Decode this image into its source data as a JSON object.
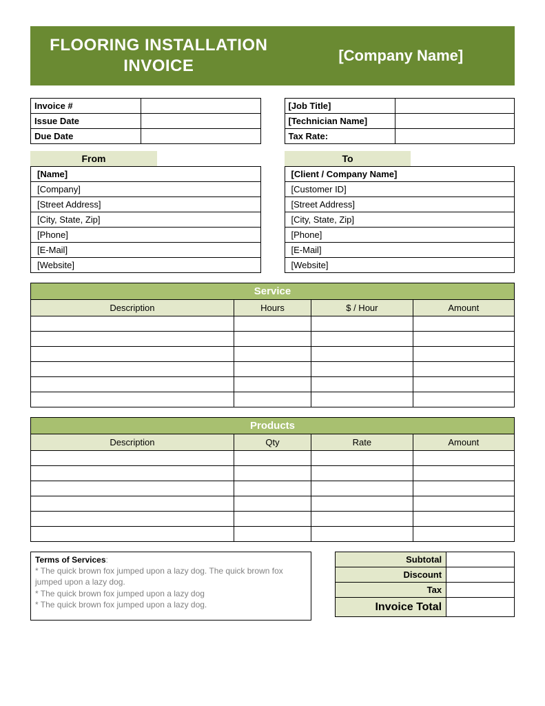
{
  "colors": {
    "header_band": "#6a8a32",
    "section_band": "#a8c070",
    "light_fill": "#e3e8cb",
    "border": "#000000",
    "terms_text": "#808080",
    "background": "#ffffff",
    "header_text": "#ffffff"
  },
  "header": {
    "title_line1": "FLOORING INSTALLATION",
    "title_line2": "INVOICE",
    "company_name": "[Company Name]"
  },
  "invoice_meta": {
    "labels": {
      "invoice_no": "Invoice #",
      "issue_date": "Issue Date",
      "due_date": "Due Date"
    },
    "values": {
      "invoice_no": "",
      "issue_date": "",
      "due_date": ""
    }
  },
  "job_meta": {
    "labels": {
      "job_title": "[Job Title]",
      "technician": "[Technician Name]",
      "tax_rate": "Tax Rate:"
    },
    "values": {
      "job_title": "",
      "technician": "",
      "tax_rate": ""
    }
  },
  "from": {
    "heading": "From",
    "fields": [
      "[Name]",
      "[Company]",
      "[Street Address]",
      "[City, State, Zip]",
      "[Phone]",
      "[E-Mail]",
      "[Website]"
    ]
  },
  "to": {
    "heading": "To",
    "fields": [
      "[Client / Company Name]",
      "[Customer ID]",
      "[Street Address]",
      "[City, State, Zip]",
      "[Phone]",
      "[E-Mail]",
      "[Website]"
    ]
  },
  "service": {
    "heading": "Service",
    "columns": [
      "Description",
      "Hours",
      "$ / Hour",
      "Amount"
    ],
    "rows": [
      [
        "",
        "",
        "",
        ""
      ],
      [
        "",
        "",
        "",
        ""
      ],
      [
        "",
        "",
        "",
        ""
      ],
      [
        "",
        "",
        "",
        ""
      ],
      [
        "",
        "",
        "",
        ""
      ],
      [
        "",
        "",
        "",
        ""
      ]
    ]
  },
  "products": {
    "heading": "Products",
    "columns": [
      "Description",
      "Qty",
      "Rate",
      "Amount"
    ],
    "rows": [
      [
        "",
        "",
        "",
        ""
      ],
      [
        "",
        "",
        "",
        ""
      ],
      [
        "",
        "",
        "",
        ""
      ],
      [
        "",
        "",
        "",
        ""
      ],
      [
        "",
        "",
        "",
        ""
      ],
      [
        "",
        "",
        "",
        ""
      ]
    ]
  },
  "terms": {
    "title": "Terms of Services",
    "lines": [
      "* The quick brown fox jumped upon a lazy dog. The quick brown fox jumped upon a lazy dog.",
      "* The quick brown fox jumped upon a lazy dog",
      "* The quick brown fox jumped upon a lazy dog."
    ]
  },
  "totals": {
    "rows": [
      {
        "label": "Subtotal",
        "value": ""
      },
      {
        "label": "Discount",
        "value": ""
      },
      {
        "label": "Tax",
        "value": ""
      }
    ],
    "grand": {
      "label": "Invoice Total",
      "value": ""
    }
  }
}
